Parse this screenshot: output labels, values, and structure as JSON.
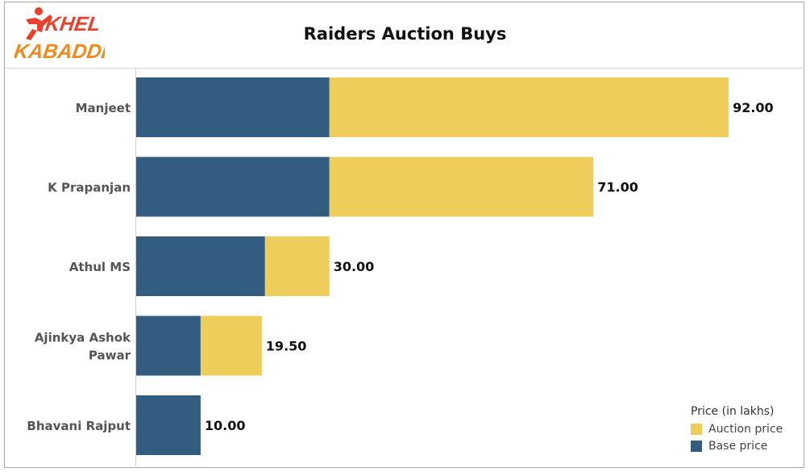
{
  "header": {
    "logo_text": [
      "KHEL",
      "KABADDI"
    ],
    "logo_colors": {
      "top": "#e8412d",
      "bottom": "#f08a1c",
      "figure": "#e8412d"
    }
  },
  "chart_data": {
    "type": "bar",
    "orientation": "horizontal",
    "stacked": true,
    "title": "Raiders Auction Buys",
    "categories": [
      "Manjeet",
      "K Prapanjan",
      "Athul MS",
      "Ajinkya Ashok Pawar",
      "Bhavani Rajput"
    ],
    "category_lines": [
      [
        "Manjeet"
      ],
      [
        "K Prapanjan"
      ],
      [
        "Athul MS"
      ],
      [
        "Ajinkya Ashok",
        "Pawar"
      ],
      [
        "Bhavani Rajput"
      ]
    ],
    "series": [
      {
        "name": "Base price",
        "color": "#325c80",
        "values": [
          30,
          30,
          20,
          10,
          10
        ]
      },
      {
        "name": "Auction price",
        "color": "#efcd5b",
        "values": [
          62,
          41,
          10,
          9.5,
          0
        ]
      }
    ],
    "total_labels": [
      "92.00",
      "71.00",
      "30.00",
      "19.50",
      "10.00"
    ],
    "totals": [
      92,
      71,
      30,
      19.5,
      10
    ],
    "xlim": [
      0,
      100
    ],
    "grid": false,
    "legend": {
      "title": "Price (in lakhs)",
      "placement": "bottom-right",
      "items": [
        {
          "label": "Auction price",
          "color": "#efcd5b"
        },
        {
          "label": "Base price",
          "color": "#325c80"
        }
      ]
    }
  }
}
